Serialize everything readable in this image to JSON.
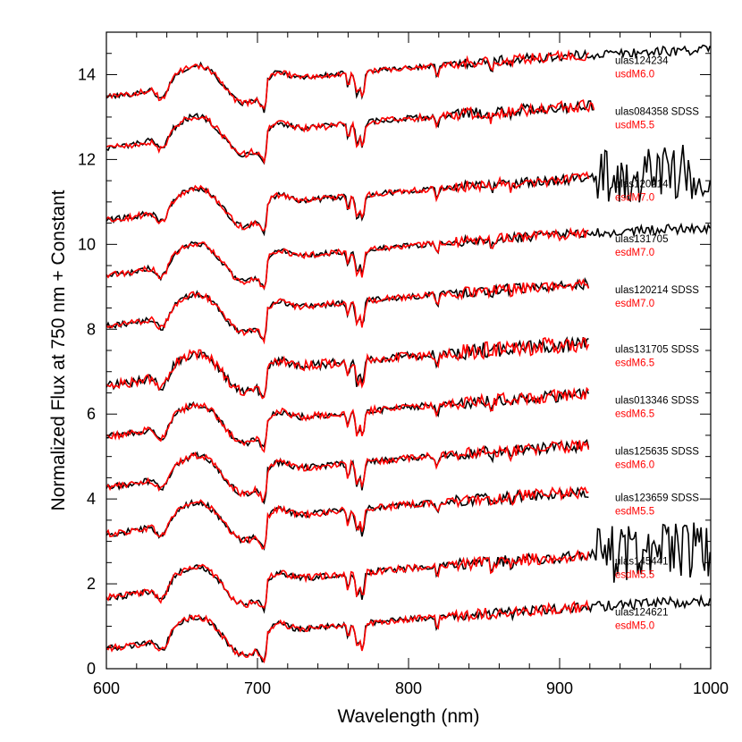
{
  "chart_data": {
    "type": "line",
    "title": "",
    "xlabel": "Wavelength (nm)",
    "ylabel": "Normalized Flux at 750 nm + Constant",
    "xlim": [
      600,
      1000
    ],
    "ylim": [
      0,
      15
    ],
    "xticks": [
      600,
      700,
      800,
      900,
      1000
    ],
    "yticks": [
      0,
      2,
      4,
      6,
      8,
      10,
      12,
      14
    ],
    "xtick_labels": [
      "600",
      "700",
      "800",
      "900",
      "1000"
    ],
    "ytick_labels": [
      "0",
      "2",
      "4",
      "6",
      "8",
      "10",
      "12",
      "14"
    ],
    "grid": false,
    "colors": {
      "observed": "#000000",
      "template": "#ff0000"
    },
    "series": [
      {
        "object": "ulas124234",
        "template": "usdM6.0",
        "offset": 13.0,
        "obs_end": 1000,
        "tmpl_end": 920,
        "noise": 0.4,
        "extra_noise_from": 0
      },
      {
        "object": "ulas084358 SDSS",
        "template": "usdM5.5",
        "offset": 11.8,
        "obs_end": 923,
        "tmpl_end": 923,
        "noise": 0.6,
        "extra_noise_from": 0
      },
      {
        "object": "ulas120214",
        "template": "esdM7.0",
        "offset": 10.1,
        "obs_end": 1000,
        "tmpl_end": 920,
        "noise": 0.5,
        "extra_noise_from": 925
      },
      {
        "object": "ulas131705",
        "template": "esdM7.0",
        "offset": 8.8,
        "obs_end": 1000,
        "tmpl_end": 920,
        "noise": 0.4,
        "extra_noise_from": 0
      },
      {
        "object": "ulas120214 SDSS",
        "template": "esdM7.0",
        "offset": 7.6,
        "obs_end": 920,
        "tmpl_end": 920,
        "noise": 0.5,
        "extra_noise_from": 0
      },
      {
        "object": "ulas131705 SDSS",
        "template": "esdM6.5",
        "offset": 6.2,
        "obs_end": 920,
        "tmpl_end": 920,
        "noise": 1.2,
        "extra_noise_from": 0
      },
      {
        "object": "ulas013346 SDSS",
        "template": "esdM6.5",
        "offset": 5.0,
        "obs_end": 920,
        "tmpl_end": 920,
        "noise": 0.7,
        "extra_noise_from": 0
      },
      {
        "object": "ulas125635 SDSS",
        "template": "esdM6.0",
        "offset": 3.8,
        "obs_end": 920,
        "tmpl_end": 920,
        "noise": 0.6,
        "extra_noise_from": 0
      },
      {
        "object": "ulas123659 SDSS",
        "template": "esdM5.5",
        "offset": 2.7,
        "obs_end": 920,
        "tmpl_end": 920,
        "noise": 0.6,
        "extra_noise_from": 0
      },
      {
        "object": "ulas145441",
        "template": "esdM5.5",
        "offset": 1.2,
        "obs_end": 1000,
        "tmpl_end": 920,
        "noise": 0.6,
        "extra_noise_from": 925
      },
      {
        "object": "ulas124621",
        "template": "esdM5.0",
        "offset": 0.0,
        "obs_end": 1000,
        "tmpl_end": 920,
        "noise": 0.5,
        "extra_noise_from": 0
      }
    ]
  }
}
